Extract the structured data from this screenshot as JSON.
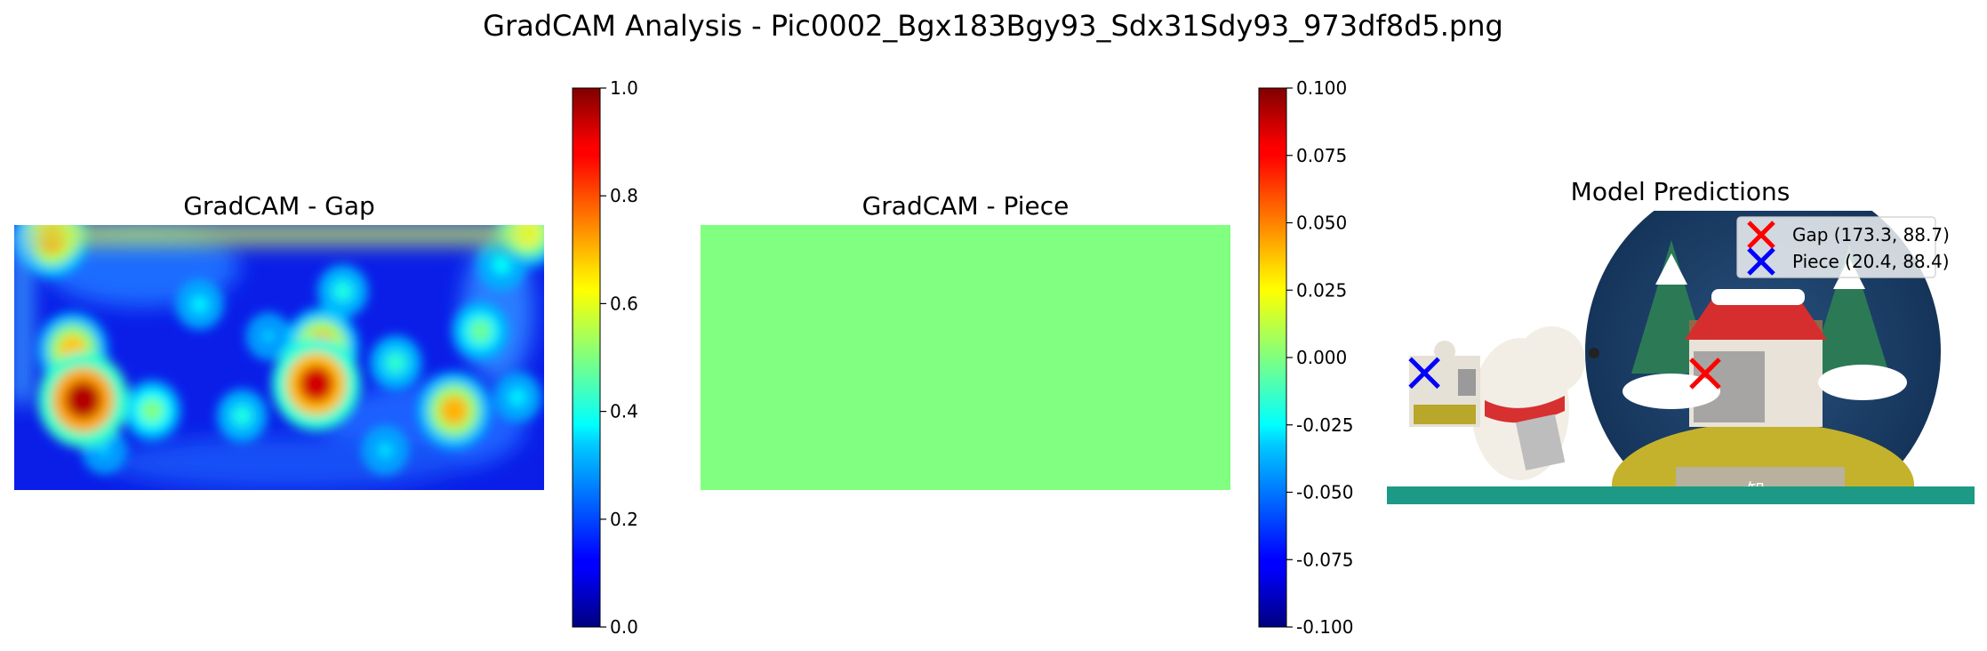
{
  "figure": {
    "title": "GradCAM Analysis - Pic0002_Bgx183Bgy93_Sdx31Sdy93_973df8d5.png"
  },
  "chart_data": [
    {
      "type": "heatmap",
      "title": "GradCAM - Gap",
      "colormap": "jet",
      "grid": false,
      "axes_visible": false,
      "colorbar": {
        "range": [
          0.0,
          1.0
        ],
        "ticks": [
          "0.0",
          "0.2",
          "0.4",
          "0.6",
          "0.8",
          "1.0"
        ]
      },
      "hotspots": [
        {
          "x": 0.13,
          "y": 0.66,
          "value": 0.95
        },
        {
          "x": 0.57,
          "y": 0.6,
          "value": 0.92
        },
        {
          "x": 0.58,
          "y": 0.46,
          "value": 0.72
        },
        {
          "x": 0.11,
          "y": 0.47,
          "value": 0.68
        },
        {
          "x": 0.83,
          "y": 0.7,
          "value": 0.7
        },
        {
          "x": 0.07,
          "y": 0.05,
          "value": 0.72
        },
        {
          "x": 0.97,
          "y": 0.03,
          "value": 0.62
        },
        {
          "x": 0.26,
          "y": 0.7,
          "value": 0.5
        },
        {
          "x": 0.43,
          "y": 0.72,
          "value": 0.4
        },
        {
          "x": 0.72,
          "y": 0.52,
          "value": 0.42
        },
        {
          "x": 0.88,
          "y": 0.4,
          "value": 0.48
        },
        {
          "x": 0.35,
          "y": 0.3,
          "value": 0.36
        },
        {
          "x": 0.17,
          "y": 0.85,
          "value": 0.32
        },
        {
          "x": 0.62,
          "y": 0.25,
          "value": 0.4
        },
        {
          "x": 0.7,
          "y": 0.85,
          "value": 0.34
        },
        {
          "x": 0.92,
          "y": 0.15,
          "value": 0.38
        },
        {
          "x": 0.48,
          "y": 0.42,
          "value": 0.32
        },
        {
          "x": 0.95,
          "y": 0.65,
          "value": 0.36
        }
      ]
    },
    {
      "type": "heatmap",
      "title": "GradCAM - Piece",
      "colormap": "jet",
      "grid": false,
      "axes_visible": false,
      "uniform_value": 0.0,
      "colorbar": {
        "range": [
          -0.1,
          0.1
        ],
        "ticks": [
          "-0.100",
          "-0.075",
          "-0.050",
          "-0.025",
          "0.000",
          "0.025",
          "0.050",
          "0.075",
          "0.100"
        ]
      }
    },
    {
      "type": "scatter",
      "title": "Model Predictions",
      "grid": false,
      "axes_visible": false,
      "image_extent": [
        0,
        320,
        0,
        160
      ],
      "legend_position": "top-right",
      "series": [
        {
          "name": "Gap (173.3, 88.7)",
          "marker": "x",
          "color": "#ff0000",
          "x": [
            173.3
          ],
          "y": [
            88.7
          ]
        },
        {
          "name": "Piece (20.4, 88.4)",
          "marker": "x",
          "color": "#0000ff",
          "x": [
            20.4
          ],
          "y": [
            88.4
          ]
        }
      ]
    }
  ]
}
